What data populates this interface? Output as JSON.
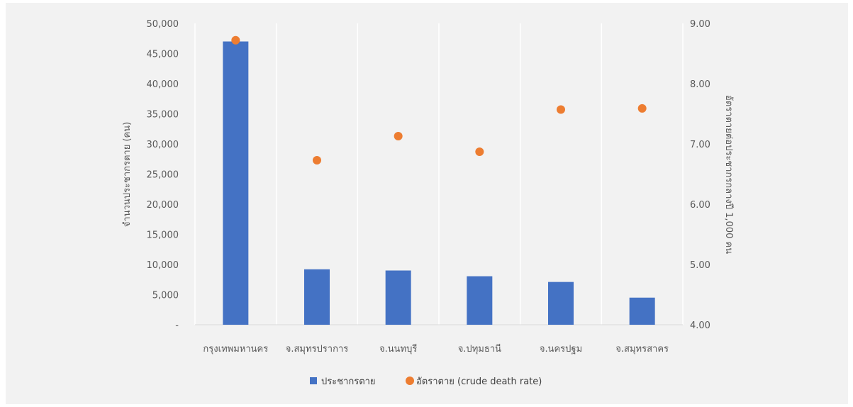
{
  "chart_data": {
    "type": "bar",
    "categories": [
      "กรุงเทพมหานคร",
      "จ.สมุทรปราการ",
      "จ.นนทบุรี",
      "จ.ปทุมธานี",
      "จ.นครปฐม",
      "จ.สมุทรสาคร"
    ],
    "series": [
      {
        "name": "ประชากรตาย",
        "type": "bar",
        "axis": "left",
        "color": "#4472c4",
        "values": [
          47000,
          9200,
          9000,
          8050,
          7100,
          4500
        ]
      },
      {
        "name": "อัตราตาย (crude death rate)",
        "type": "scatter",
        "axis": "right",
        "color": "#ed7d31",
        "values": [
          8.72,
          6.73,
          7.13,
          6.87,
          7.57,
          7.59
        ]
      }
    ],
    "ylabel": "จำนวนประชากรตาย (คน)",
    "y2label": "อัตราตายต่อประชากรกลางปี 1,000 คน",
    "ylim": [
      0,
      50000
    ],
    "y2lim": [
      4.0,
      9.0
    ],
    "yticks": [
      "-",
      "5,000",
      "10,000",
      "15,000",
      "20,000",
      "25,000",
      "30,000",
      "35,000",
      "40,000",
      "45,000",
      "50,000"
    ],
    "y2ticks": [
      "4.00",
      "5.00",
      "6.00",
      "7.00",
      "8.00",
      "9.00"
    ],
    "grid": "vertical",
    "legend": "bottom-center"
  }
}
